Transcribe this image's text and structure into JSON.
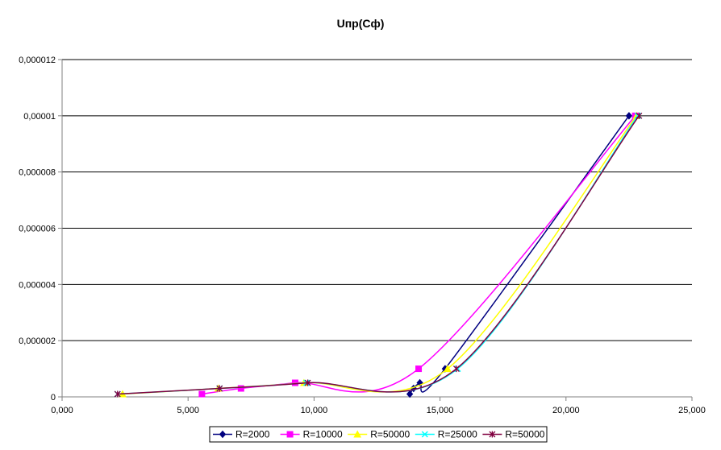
{
  "chart_data": {
    "type": "line",
    "title": "Uпр(Cф)",
    "xlabel": "",
    "ylabel": "",
    "xlim": [
      0,
      25000
    ],
    "ylim": [
      0,
      1.2e-05
    ],
    "x_ticks": [
      0,
      5000,
      10000,
      15000,
      20000,
      25000
    ],
    "x_tick_labels": [
      "0,000",
      "5,000",
      "10,000",
      "15,000",
      "20,000",
      "25,000"
    ],
    "y_ticks": [
      0,
      2e-06,
      4e-06,
      6e-06,
      8e-06,
      1e-05,
      1.2e-05
    ],
    "y_tick_labels": [
      "0",
      "0,000002",
      "0,000004",
      "0,000006",
      "0,000008",
      "0,00001",
      "0,000012"
    ],
    "grid": "horizontal",
    "legend_position": "bottom",
    "series": [
      {
        "name": "R=2000",
        "color": "#000080",
        "marker": "diamond",
        "points": [
          [
            13800,
            1e-07
          ],
          [
            13950,
            3e-07
          ],
          [
            14200,
            5e-07
          ],
          [
            15200,
            1e-06
          ],
          [
            22500,
            1e-05
          ]
        ]
      },
      {
        "name": "R=10000",
        "color": "#ff00ff",
        "marker": "square",
        "points": [
          [
            5550,
            1e-07
          ],
          [
            7100,
            3e-07
          ],
          [
            9250,
            5e-07
          ],
          [
            14150,
            1e-06
          ],
          [
            22750,
            1e-05
          ]
        ]
      },
      {
        "name": "R=50000",
        "color": "#ffff00",
        "marker": "triangle",
        "points": [
          [
            2400,
            1e-07
          ],
          [
            6200,
            3e-07
          ],
          [
            9600,
            5e-07
          ],
          [
            15300,
            1e-06
          ],
          [
            22800,
            1e-05
          ]
        ]
      },
      {
        "name": "R=25000",
        "color": "#00ffff",
        "marker": "x",
        "points": [
          [
            2200,
            1e-07
          ],
          [
            6250,
            3e-07
          ],
          [
            9700,
            5e-07
          ],
          [
            15700,
            1e-06
          ],
          [
            22850,
            1e-05
          ]
        ]
      },
      {
        "name": "R=50000",
        "color": "#800040",
        "marker": "star",
        "points": [
          [
            2200,
            1e-07
          ],
          [
            6250,
            3e-07
          ],
          [
            9750,
            5e-07
          ],
          [
            15650,
            1e-06
          ],
          [
            22900,
            1e-05
          ]
        ]
      }
    ]
  }
}
